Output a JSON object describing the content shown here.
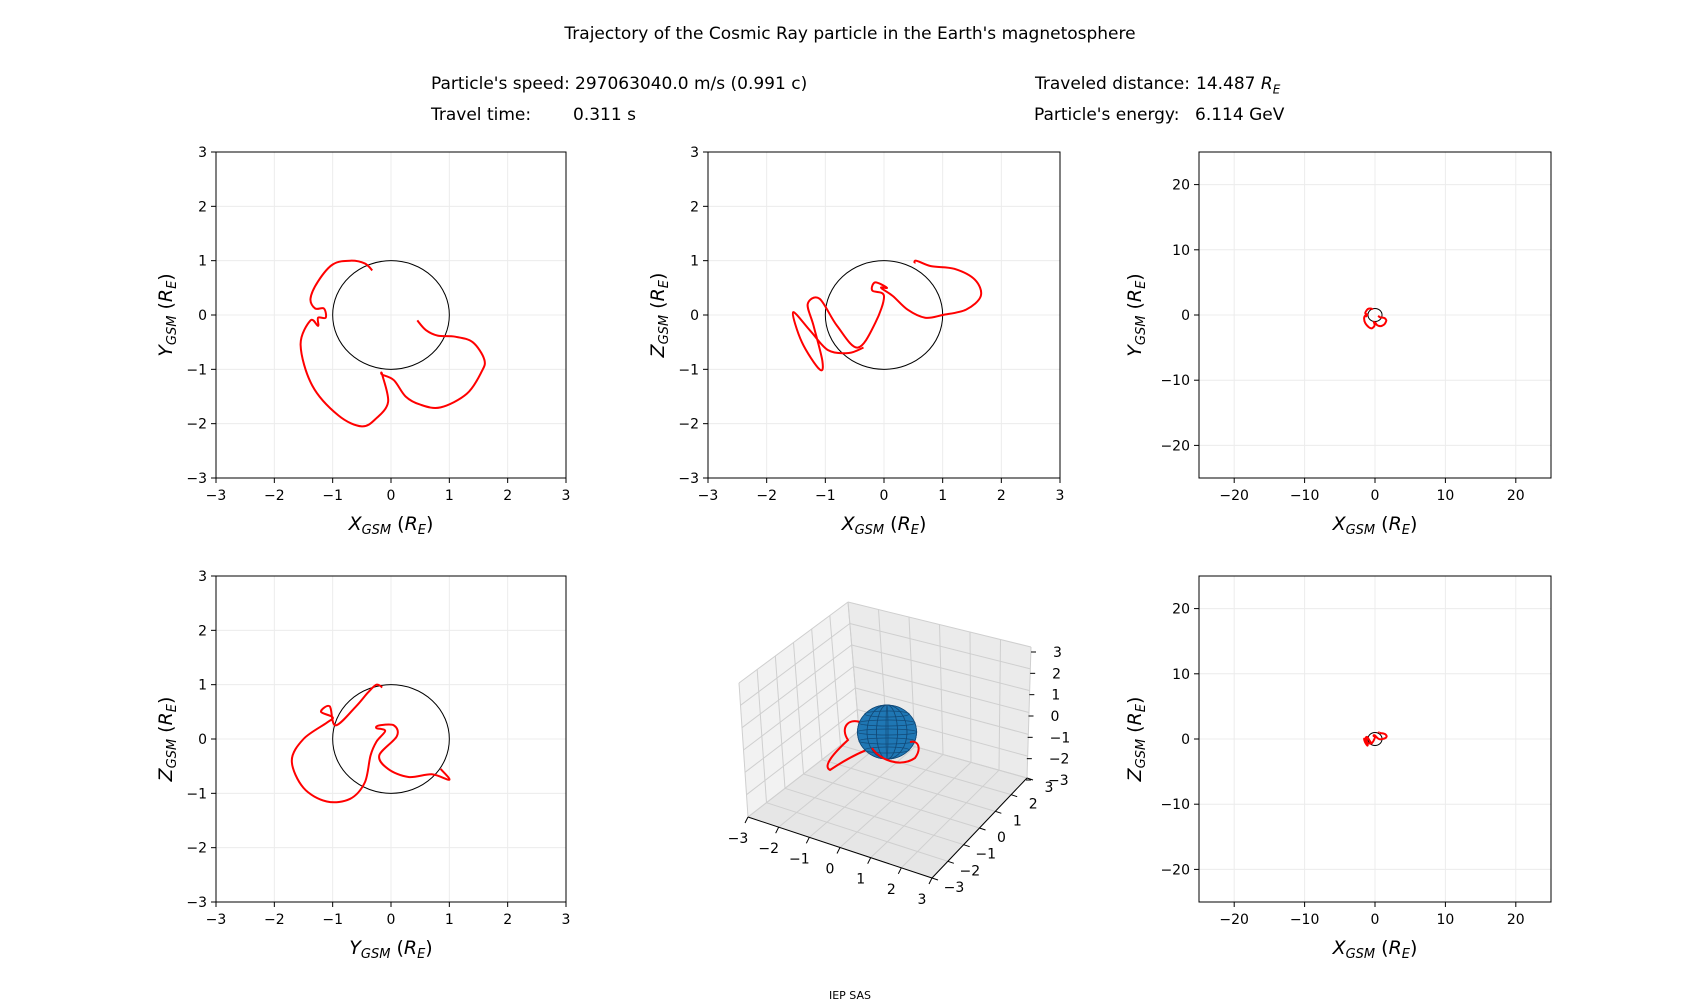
{
  "title": "Trajectory of the Cosmic Ray particle in the Earth's magnetosphere",
  "info": {
    "speed_label": "Particle's speed:",
    "speed_value": "297063040.0 m/s (0.991 c)",
    "time_label": "Travel time:",
    "time_value": "0.311 s",
    "distance_label": "Traveled distance:",
    "distance_value": "14.487",
    "distance_unit": "R_E",
    "energy_label": "Particle's energy:",
    "energy_value": "6.114 GeV"
  },
  "footer": "IEP SAS",
  "colors": {
    "trajectory": "#ff0000",
    "earth": "#1f77b4",
    "grid": "#ececec",
    "circle": "#000000"
  },
  "chart_data": [
    {
      "type": "line",
      "xlabel": "X_GSM (R_E)",
      "ylabel": "Y_GSM (R_E)",
      "xlim": [
        -3,
        3
      ],
      "ylim": [
        -3,
        3
      ],
      "xticks": [
        -3,
        -2,
        -1,
        0,
        1,
        2,
        3
      ],
      "yticks": [
        -3,
        -2,
        -1,
        0,
        1,
        2,
        3
      ],
      "grid": true,
      "earth_radius": 1,
      "x": [
        -0.32,
        -0.45,
        -0.7,
        -1.0,
        -1.25,
        -1.38,
        -1.3,
        -1.15,
        -1.12,
        -1.25,
        -1.25,
        -1.38,
        -1.55,
        -1.35,
        -0.9,
        -0.5,
        -0.25,
        -0.05,
        -0.15,
        -0.15,
        0.05,
        0.25,
        0.5,
        0.85,
        1.3,
        1.55,
        1.6,
        1.4,
        1.1,
        0.8,
        0.6,
        0.45
      ],
      "y": [
        0.82,
        0.95,
        1.0,
        0.93,
        0.62,
        0.3,
        0.12,
        0.12,
        -0.05,
        -0.05,
        -0.2,
        -0.1,
        -0.55,
        -1.3,
        -1.85,
        -2.05,
        -1.9,
        -1.6,
        -1.1,
        -1.1,
        -1.2,
        -1.5,
        -1.65,
        -1.7,
        -1.45,
        -1.05,
        -0.82,
        -0.5,
        -0.4,
        -0.38,
        -0.28,
        -0.1
      ]
    },
    {
      "type": "line",
      "xlabel": "X_GSM (R_E)",
      "ylabel": "Z_GSM (R_E)",
      "xlim": [
        -3,
        3
      ],
      "ylim": [
        -3,
        3
      ],
      "xticks": [
        -3,
        -2,
        -1,
        0,
        1,
        2,
        3
      ],
      "yticks": [
        -3,
        -2,
        -1,
        0,
        1,
        2,
        3
      ],
      "grid": true,
      "earth_radius": 1,
      "x": [
        -0.35,
        -0.6,
        -0.95,
        -1.25,
        -1.55,
        -1.4,
        -1.1,
        -1.05,
        -1.2,
        -1.3,
        -1.1,
        -0.8,
        -0.45,
        -0.15,
        0.0,
        -0.2,
        -0.15,
        0.05,
        -0.05,
        0.15,
        0.4,
        0.7,
        1.0,
        1.4,
        1.65,
        1.55,
        1.2,
        0.8,
        0.55,
        0.52
      ],
      "y": [
        -0.6,
        -0.7,
        -0.65,
        -0.3,
        0.05,
        -0.5,
        -1.0,
        -0.85,
        -0.2,
        0.2,
        0.3,
        -0.2,
        -0.6,
        -0.15,
        0.35,
        0.45,
        0.6,
        0.5,
        0.5,
        0.35,
        0.1,
        -0.05,
        0.0,
        0.1,
        0.35,
        0.65,
        0.85,
        0.9,
        1.0,
        0.95
      ]
    },
    {
      "type": "line",
      "xlabel": "X_GSM (R_E)",
      "ylabel": "Y_GSM (R_E)",
      "xlim": [
        -25,
        25
      ],
      "ylim": [
        -25,
        25
      ],
      "xticks": [
        -20,
        -10,
        0,
        10,
        20
      ],
      "yticks": [
        -20,
        -10,
        0,
        10,
        20
      ],
      "grid": true,
      "earth_radius": 1,
      "x": [
        -0.32,
        -0.45,
        -0.7,
        -1.0,
        -1.25,
        -1.38,
        -1.3,
        -1.15,
        -1.12,
        -1.25,
        -1.25,
        -1.38,
        -1.55,
        -1.35,
        -0.9,
        -0.5,
        -0.25,
        -0.05,
        -0.15,
        -0.15,
        0.05,
        0.25,
        0.5,
        0.85,
        1.3,
        1.55,
        1.6,
        1.4,
        1.1,
        0.8,
        0.6,
        0.45
      ],
      "y": [
        0.82,
        0.95,
        1.0,
        0.93,
        0.62,
        0.3,
        0.12,
        0.12,
        -0.05,
        -0.05,
        -0.2,
        -0.1,
        -0.55,
        -1.3,
        -1.85,
        -2.05,
        -1.9,
        -1.6,
        -1.1,
        -1.1,
        -1.2,
        -1.5,
        -1.65,
        -1.7,
        -1.45,
        -1.05,
        -0.82,
        -0.5,
        -0.4,
        -0.38,
        -0.28,
        -0.1
      ]
    },
    {
      "type": "line",
      "xlabel": "Y_GSM (R_E)",
      "ylabel": "Z_GSM (R_E)",
      "xlim": [
        -3,
        3
      ],
      "ylim": [
        -3,
        3
      ],
      "xticks": [
        -3,
        -2,
        -1,
        0,
        1,
        2,
        3
      ],
      "yticks": [
        -3,
        -2,
        -1,
        0,
        1,
        2,
        3
      ],
      "grid": true,
      "earth_radius": 1,
      "x": [
        -0.15,
        -0.25,
        -0.4,
        -0.6,
        -0.95,
        -1.05,
        -1.2,
        -1.0,
        -1.1,
        -1.5,
        -1.7,
        -1.5,
        -1.1,
        -0.7,
        -0.45,
        -0.35,
        -0.25,
        -0.1,
        -0.25,
        -0.2,
        0.05,
        0.1,
        -0.2,
        -0.05,
        0.3,
        0.7,
        1.0,
        0.85
      ],
      "y": [
        0.95,
        1.0,
        0.85,
        0.6,
        0.25,
        0.6,
        0.5,
        0.4,
        0.3,
        0.0,
        -0.4,
        -0.9,
        -1.15,
        -1.1,
        -0.8,
        -0.3,
        -0.05,
        0.15,
        0.2,
        0.25,
        0.25,
        0.05,
        -0.3,
        -0.55,
        -0.7,
        -0.65,
        -0.75,
        -0.55
      ]
    },
    {
      "type": "line",
      "projection": "3d",
      "xlim": [
        -3,
        3
      ],
      "ylim": [
        -3,
        3
      ],
      "zlim": [
        -3,
        3
      ],
      "xticks": [
        -3,
        -2,
        -1,
        0,
        1,
        2,
        3
      ],
      "yticks": [
        -3,
        -2,
        -1,
        0,
        1,
        2,
        3
      ],
      "zticks": [
        -3,
        -2,
        -1,
        0,
        1,
        2,
        3
      ],
      "grid": true,
      "earth_radius": 1
    },
    {
      "type": "line",
      "xlabel": "X_GSM (R_E)",
      "ylabel": "Z_GSM (R_E)",
      "xlim": [
        -25,
        25
      ],
      "ylim": [
        -25,
        25
      ],
      "xticks": [
        -20,
        -10,
        0,
        10,
        20
      ],
      "yticks": [
        -20,
        -10,
        0,
        10,
        20
      ],
      "grid": true,
      "earth_radius": 1,
      "x": [
        -0.35,
        -0.6,
        -0.95,
        -1.25,
        -1.55,
        -1.4,
        -1.1,
        -1.05,
        -1.2,
        -1.3,
        -1.1,
        -0.8,
        -0.45,
        -0.15,
        0.0,
        -0.2,
        -0.15,
        0.05,
        -0.05,
        0.15,
        0.4,
        0.7,
        1.0,
        1.4,
        1.65,
        1.55,
        1.2,
        0.8,
        0.55,
        0.52
      ],
      "y": [
        -0.6,
        -0.7,
        -0.65,
        -0.3,
        0.05,
        -0.5,
        -1.0,
        -0.85,
        -0.2,
        0.2,
        0.3,
        -0.2,
        -0.6,
        -0.15,
        0.35,
        0.45,
        0.6,
        0.5,
        0.5,
        0.35,
        0.1,
        -0.05,
        0.0,
        0.1,
        0.35,
        0.65,
        0.85,
        0.9,
        1.0,
        0.95
      ]
    }
  ]
}
